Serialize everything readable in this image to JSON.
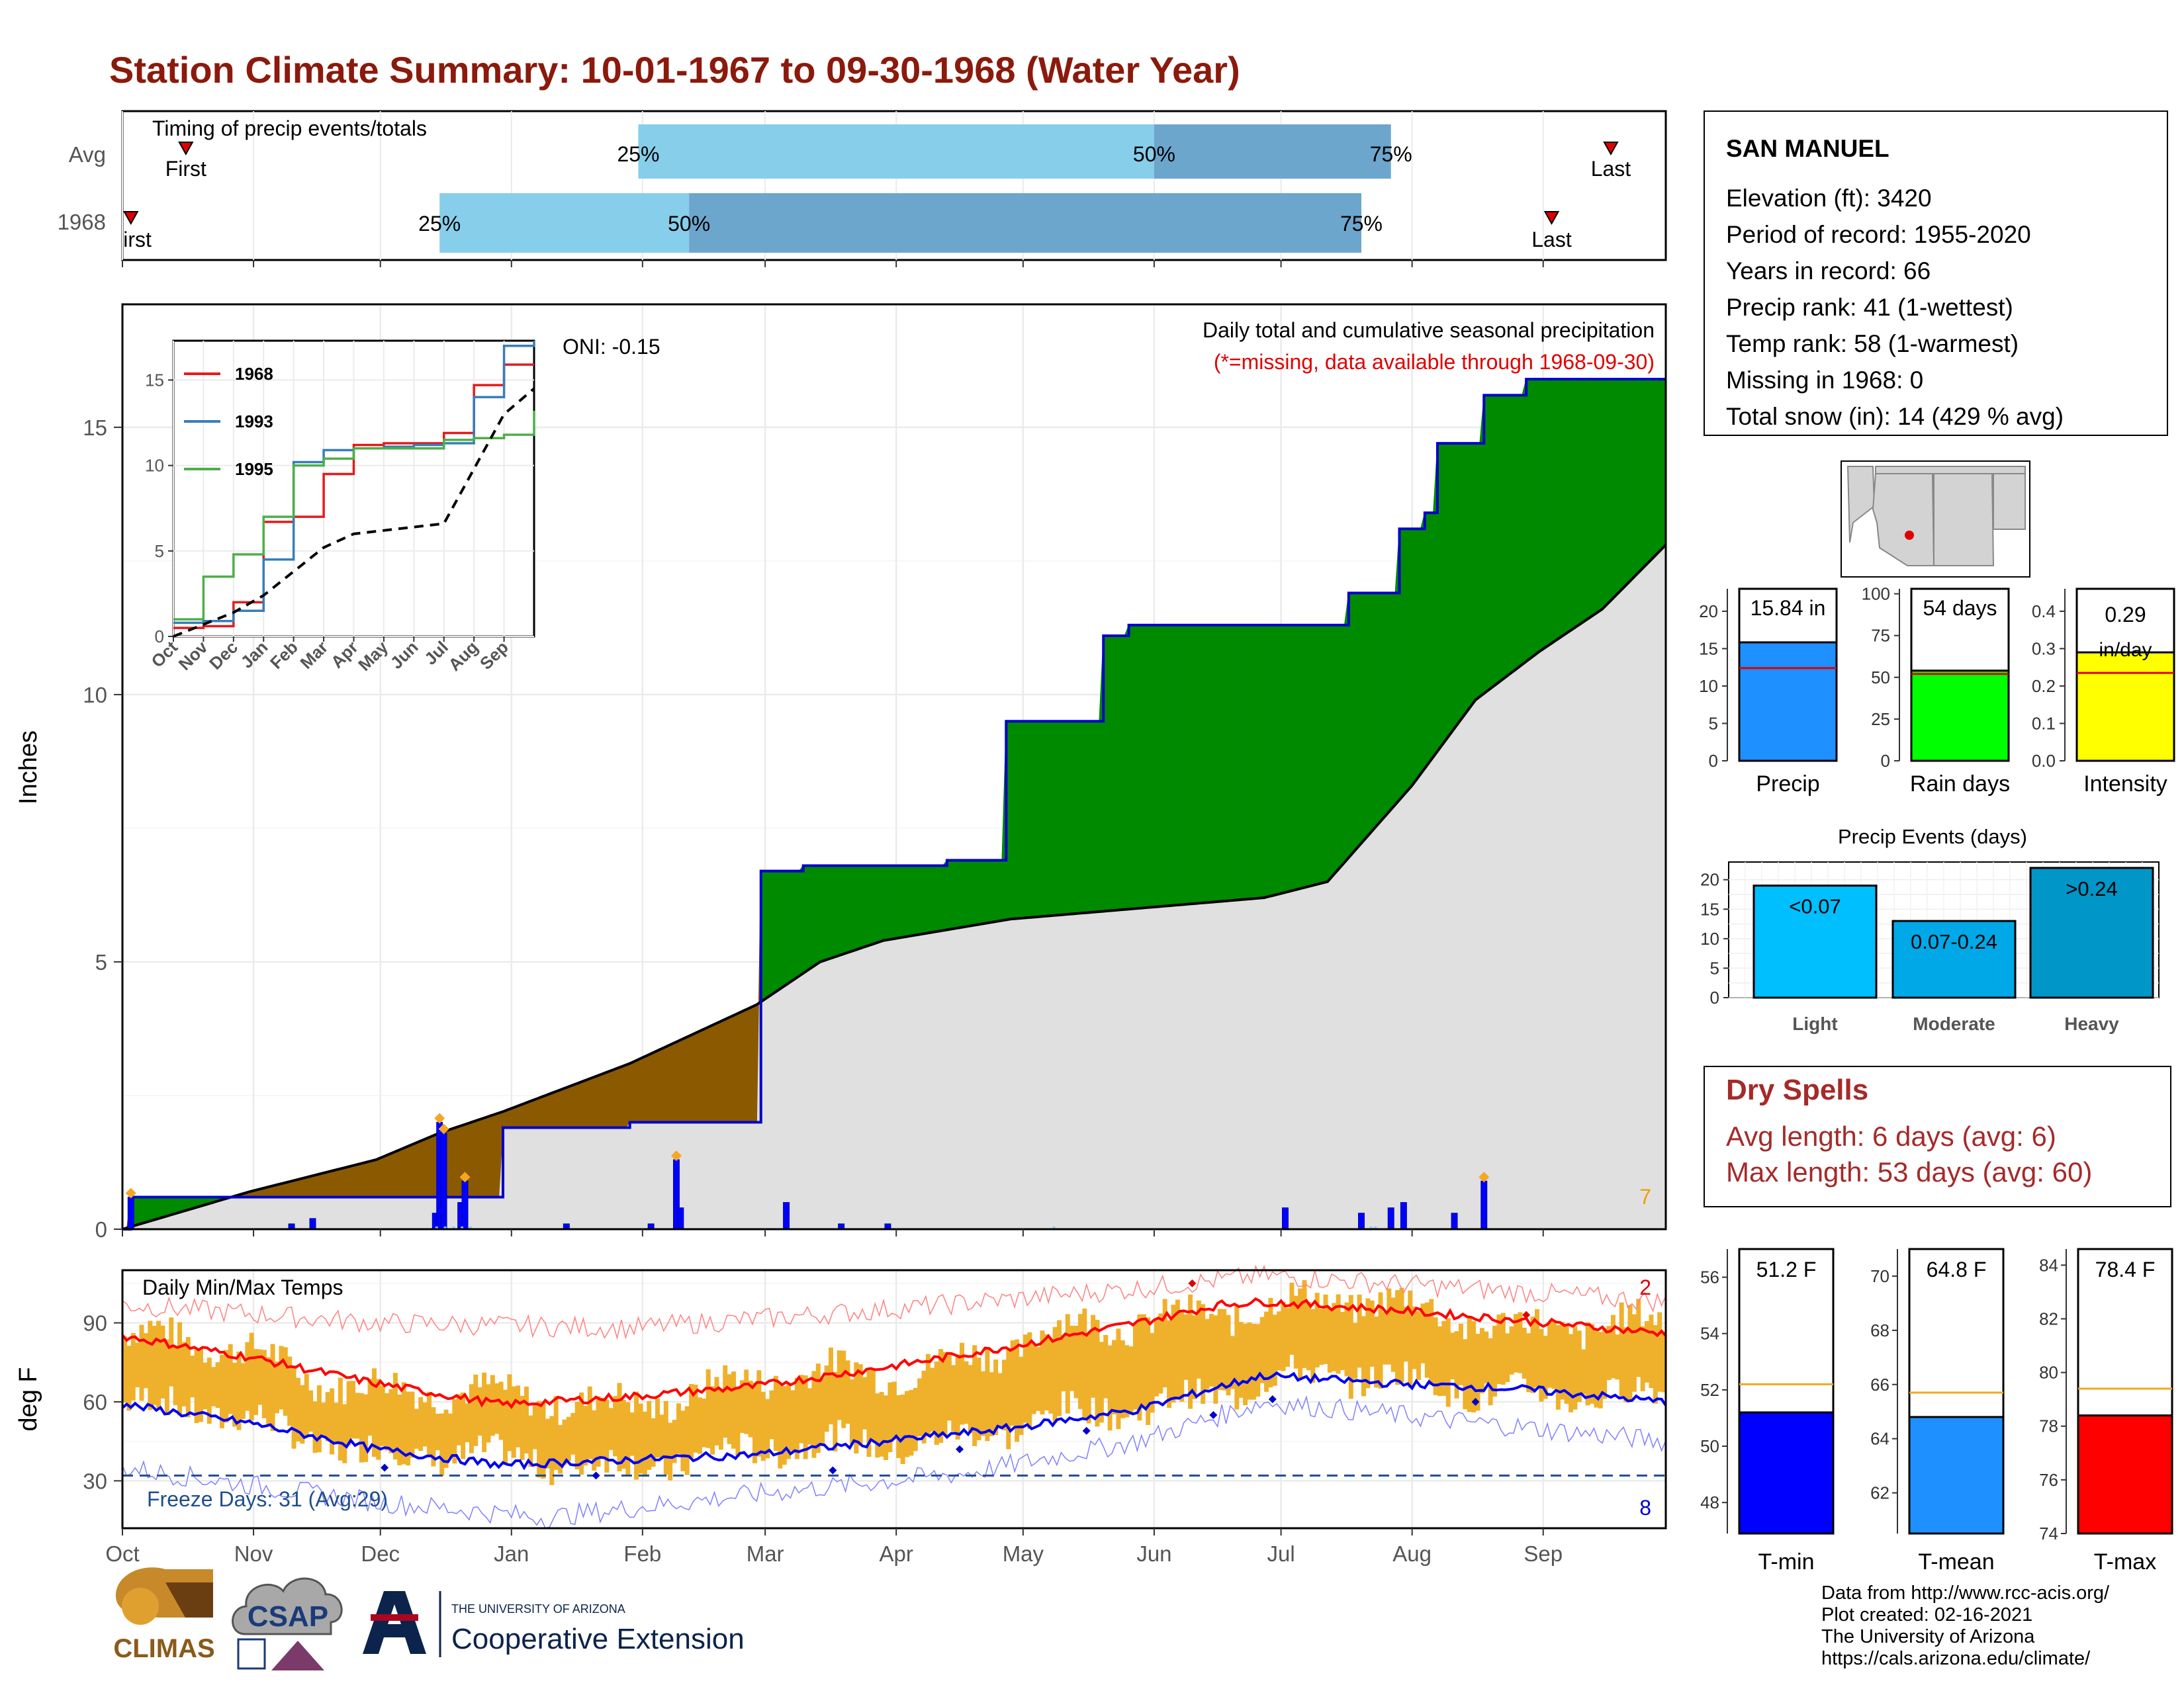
{
  "title": "Station Climate Summary: 10-01-1967 to 09-30-1968 (Water Year)",
  "months": [
    "Oct",
    "Nov",
    "Dec",
    "Jan",
    "Feb",
    "Mar",
    "Apr",
    "May",
    "Jun",
    "Jul",
    "Aug",
    "Sep"
  ],
  "timing": {
    "label": "Timing of precip events/totals",
    "rows": [
      {
        "name": "Avg",
        "first_label": "First",
        "last_label": "Last",
        "first_day": 15,
        "last_day": 352,
        "p25_day": 122,
        "p50_day": 244,
        "p75_day": 300,
        "p25_label": "25%",
        "p50_label": "50%",
        "p75_label": "75%"
      },
      {
        "name": "1968",
        "first_label": "First",
        "last_label": "Last",
        "first_day": 2,
        "last_day": 338,
        "p25_day": 75,
        "p50_day": 134,
        "p75_day": 293,
        "p25_label": "25%",
        "p50_label": "50%",
        "p75_label": "75%"
      }
    ]
  },
  "main": {
    "ylabel": "Inches",
    "yticks": [
      0,
      5,
      10,
      15
    ],
    "ylim": [
      0,
      17.3
    ],
    "note1": "Daily total and cumulative seasonal precipitation",
    "note2": "(*=missing, data available through 1968-09-30)",
    "oni": "ONI: -0.15",
    "corner_count": "7"
  },
  "inset": {
    "yticks": [
      "0",
      "5",
      "10",
      "15"
    ],
    "xlabels": [
      "Oct",
      "Nov",
      "Dec",
      "Jan",
      "Feb",
      "Mar",
      "Apr",
      "May",
      "Jun",
      "Jul",
      "Aug",
      "Sep"
    ],
    "legend": [
      {
        "name": "1968",
        "color": "#e41a1c"
      },
      {
        "name": "1993",
        "color": "#377eb8"
      },
      {
        "name": "1995",
        "color": "#4daf4a"
      }
    ]
  },
  "temps": {
    "label": "Daily Min/Max Temps",
    "ylabel": "deg F",
    "yticks": [
      30,
      60,
      90
    ],
    "ylim": [
      12,
      110
    ],
    "freeze": "Freeze Days: 31 (Avg:29)",
    "count_high": "2",
    "count_low": "8"
  },
  "station": {
    "name": "SAN MANUEL",
    "lines": [
      "Elevation (ft): 3420",
      "Period of record: 1955-2020",
      "Years in record: 66",
      "Precip rank: 41 (1-wettest)",
      "Temp rank: 58 (1-warmest)",
      "Missing in 1968: 0",
      "Total snow (in): 14 (429 % avg)"
    ]
  },
  "stat_bars": [
    {
      "name": "Precip",
      "label": "15.84 in",
      "value": 15.84,
      "avg": 12.4,
      "ymax": 23,
      "ticks": [
        "0",
        "5",
        "10",
        "15",
        "20"
      ],
      "tick_vals": [
        0,
        5,
        10,
        15,
        20
      ],
      "color": "#1e90ff"
    },
    {
      "name": "Rain days",
      "label": "54 days",
      "value": 54,
      "avg": 52,
      "ymax": 103,
      "ticks": [
        "0",
        "25",
        "50",
        "75",
        "100"
      ],
      "tick_vals": [
        0,
        25,
        50,
        75,
        100
      ],
      "color": "#00ff00"
    },
    {
      "name": "Intensity",
      "label": "0.29 in/day",
      "label_top": "0.29",
      "label_bottom": "in/day",
      "value": 0.29,
      "avg": 0.235,
      "ymax": 0.46,
      "ticks": [
        "0.0",
        "0.1",
        "0.2",
        "0.3",
        "0.4"
      ],
      "tick_vals": [
        0,
        0.1,
        0.2,
        0.3,
        0.4
      ],
      "color": "#ffff00"
    }
  ],
  "events": {
    "title": "Precip Events (days)",
    "ticks": [
      "0",
      "5",
      "10",
      "15",
      "20"
    ],
    "tick_vals": [
      0,
      5,
      10,
      15,
      20
    ],
    "ymax": 23,
    "bars": [
      {
        "name": "Light",
        "label": "<0.07",
        "value": 19,
        "color": "#00bfff"
      },
      {
        "name": "Moderate",
        "label": "0.07-0.24",
        "value": 13,
        "color": "#00a8e8"
      },
      {
        "name": "Heavy",
        "label": ">0.24",
        "value": 22,
        "color": "#0096c7"
      }
    ]
  },
  "dry_spells": {
    "title": "Dry Spells",
    "lines": [
      "Avg length: 6 days (avg: 6)",
      "Max length: 53 days (avg: 60)"
    ]
  },
  "temp_bars": [
    {
      "name": "T-min",
      "label": "51.2 F",
      "value": 51.2,
      "avg": 52.2,
      "ymin": 46.9,
      "ymax": 57,
      "ticks": [
        "48",
        "50",
        "52",
        "54",
        "56"
      ],
      "tick_vals": [
        48,
        50,
        52,
        54,
        56
      ],
      "color": "#0000ff"
    },
    {
      "name": "T-mean",
      "label": "64.8 F",
      "value": 64.8,
      "avg": 65.7,
      "ymin": 60.5,
      "ymax": 71,
      "ticks": [
        "62",
        "64",
        "66",
        "68",
        "70"
      ],
      "tick_vals": [
        62,
        64,
        66,
        68,
        70
      ],
      "color": "#1e90ff"
    },
    {
      "name": "T-max",
      "label": "78.4 F",
      "value": 78.4,
      "avg": 79.4,
      "ymin": 74,
      "ymax": 84.6,
      "ticks": [
        "74",
        "76",
        "78",
        "80",
        "82",
        "84"
      ],
      "tick_vals": [
        74,
        76,
        78,
        80,
        82,
        84
      ],
      "color": "#ff0000"
    }
  ],
  "footer": [
    "Data from http://www.rcc-acis.org/",
    "Plot created: 02-16-2021",
    "The University of Arizona",
    "https://cals.arizona.edu/climate/"
  ],
  "logos": {
    "climas": "CLIMAS",
    "csap": "CSAP",
    "ua_small": "THE UNIVERSITY OF ARIZONA",
    "ua_big": "Cooperative Extension"
  },
  "chart_data": {
    "type": "area",
    "title": "Station Climate Summary: 10-01-1967 to 09-30-1968 (Water Year)",
    "ylabel": "Inches",
    "categories": [
      "Oct",
      "Nov",
      "Dec",
      "Jan",
      "Feb",
      "Mar",
      "Apr",
      "May",
      "Jun",
      "Jul",
      "Aug",
      "Sep"
    ],
    "ylim": [
      0,
      17.3
    ],
    "cumulative_1968": {
      "day": [
        0,
        2,
        25,
        75,
        90,
        120,
        151,
        161,
        195,
        209,
        232,
        238,
        275,
        290,
        297,
        302,
        308,
        311,
        316,
        322,
        332,
        343,
        365
      ],
      "inches": [
        0.0,
        0.6,
        0.6,
        0.6,
        1.9,
        2.0,
        6.7,
        6.8,
        6.9,
        9.5,
        11.1,
        11.3,
        11.3,
        11.9,
        11.9,
        13.1,
        13.4,
        14.7,
        14.7,
        15.6,
        15.9,
        15.9,
        15.9
      ]
    },
    "cumulative_avg": {
      "day": [
        0,
        30,
        60,
        75,
        90,
        120,
        150,
        165,
        180,
        210,
        240,
        270,
        285,
        305,
        320,
        335,
        350,
        365
      ],
      "inches": [
        0.0,
        0.7,
        1.3,
        1.8,
        2.2,
        3.1,
        4.2,
        5.0,
        5.4,
        5.8,
        6.0,
        6.2,
        6.5,
        8.3,
        9.9,
        10.8,
        11.6,
        12.8
      ]
    },
    "daily_precip": [
      {
        "day": 2,
        "inches": 0.6
      },
      {
        "day": 40,
        "inches": 0.1
      },
      {
        "day": 45,
        "inches": 0.2
      },
      {
        "day": 74,
        "inches": 0.3
      },
      {
        "day": 75,
        "inches": 2.0
      },
      {
        "day": 76,
        "inches": 1.8
      },
      {
        "day": 80,
        "inches": 0.5
      },
      {
        "day": 81,
        "inches": 0.9
      },
      {
        "day": 105,
        "inches": 0.1
      },
      {
        "day": 125,
        "inches": 0.1
      },
      {
        "day": 131,
        "inches": 1.3
      },
      {
        "day": 132,
        "inches": 0.4
      },
      {
        "day": 157,
        "inches": 0.5
      },
      {
        "day": 170,
        "inches": 0.1
      },
      {
        "day": 181,
        "inches": 0.1
      },
      {
        "day": 275,
        "inches": 0.4
      },
      {
        "day": 293,
        "inches": 0.3
      },
      {
        "day": 300,
        "inches": 0.4
      },
      {
        "day": 303,
        "inches": 0.5
      },
      {
        "day": 315,
        "inches": 0.3
      },
      {
        "day": 322,
        "inches": 0.9
      }
    ],
    "inset_series": [
      {
        "name": "1968",
        "values": [
          0.5,
          0.6,
          2.0,
          6.7,
          7.0,
          9.5,
          11.2,
          11.3,
          11.3,
          11.9,
          14.7,
          15.9,
          15.9
        ]
      },
      {
        "name": "1993",
        "values": [
          0.8,
          0.9,
          1.5,
          4.5,
          10.2,
          10.9,
          11.0,
          11.1,
          11.2,
          11.3,
          14.0,
          17.0,
          17.3
        ]
      },
      {
        "name": "1995",
        "values": [
          1.0,
          3.5,
          4.8,
          7.0,
          10.0,
          10.4,
          11.0,
          11.0,
          11.0,
          11.5,
          11.6,
          11.8,
          13.2
        ]
      },
      {
        "name": "avg",
        "values": [
          0.0,
          0.7,
          1.4,
          2.4,
          3.8,
          5.2,
          6.0,
          6.2,
          6.4,
          6.6,
          9.8,
          13.0,
          14.5
        ]
      }
    ],
    "temps": {
      "ylabel": "deg F",
      "ylim": [
        12,
        110
      ],
      "normal_max": {
        "day": [
          0,
          30,
          60,
          90,
          120,
          150,
          180,
          210,
          240,
          260,
          270,
          300,
          330,
          365
        ],
        "value": [
          85,
          77,
          67,
          59,
          62,
          66,
          73,
          81,
          90,
          97,
          98,
          95,
          91,
          86
        ]
      },
      "normal_min": {
        "day": [
          0,
          30,
          60,
          90,
          120,
          150,
          180,
          210,
          240,
          260,
          270,
          300,
          330,
          365
        ],
        "value": [
          59,
          52,
          42,
          36,
          38,
          40,
          45,
          50,
          57,
          66,
          70,
          67,
          65,
          60
        ]
      },
      "record_max": {
        "day": [
          0,
          60,
          120,
          180,
          240,
          270,
          300,
          365
        ],
        "value": [
          97,
          90,
          88,
          95,
          103,
          108,
          105,
          98
        ]
      },
      "record_min": {
        "day": [
          0,
          60,
          100,
          150,
          200,
          240,
          270,
          365
        ],
        "value": [
          35,
          22,
          16,
          25,
          33,
          45,
          60,
          45
        ]
      },
      "freeze_line": 32
    }
  }
}
